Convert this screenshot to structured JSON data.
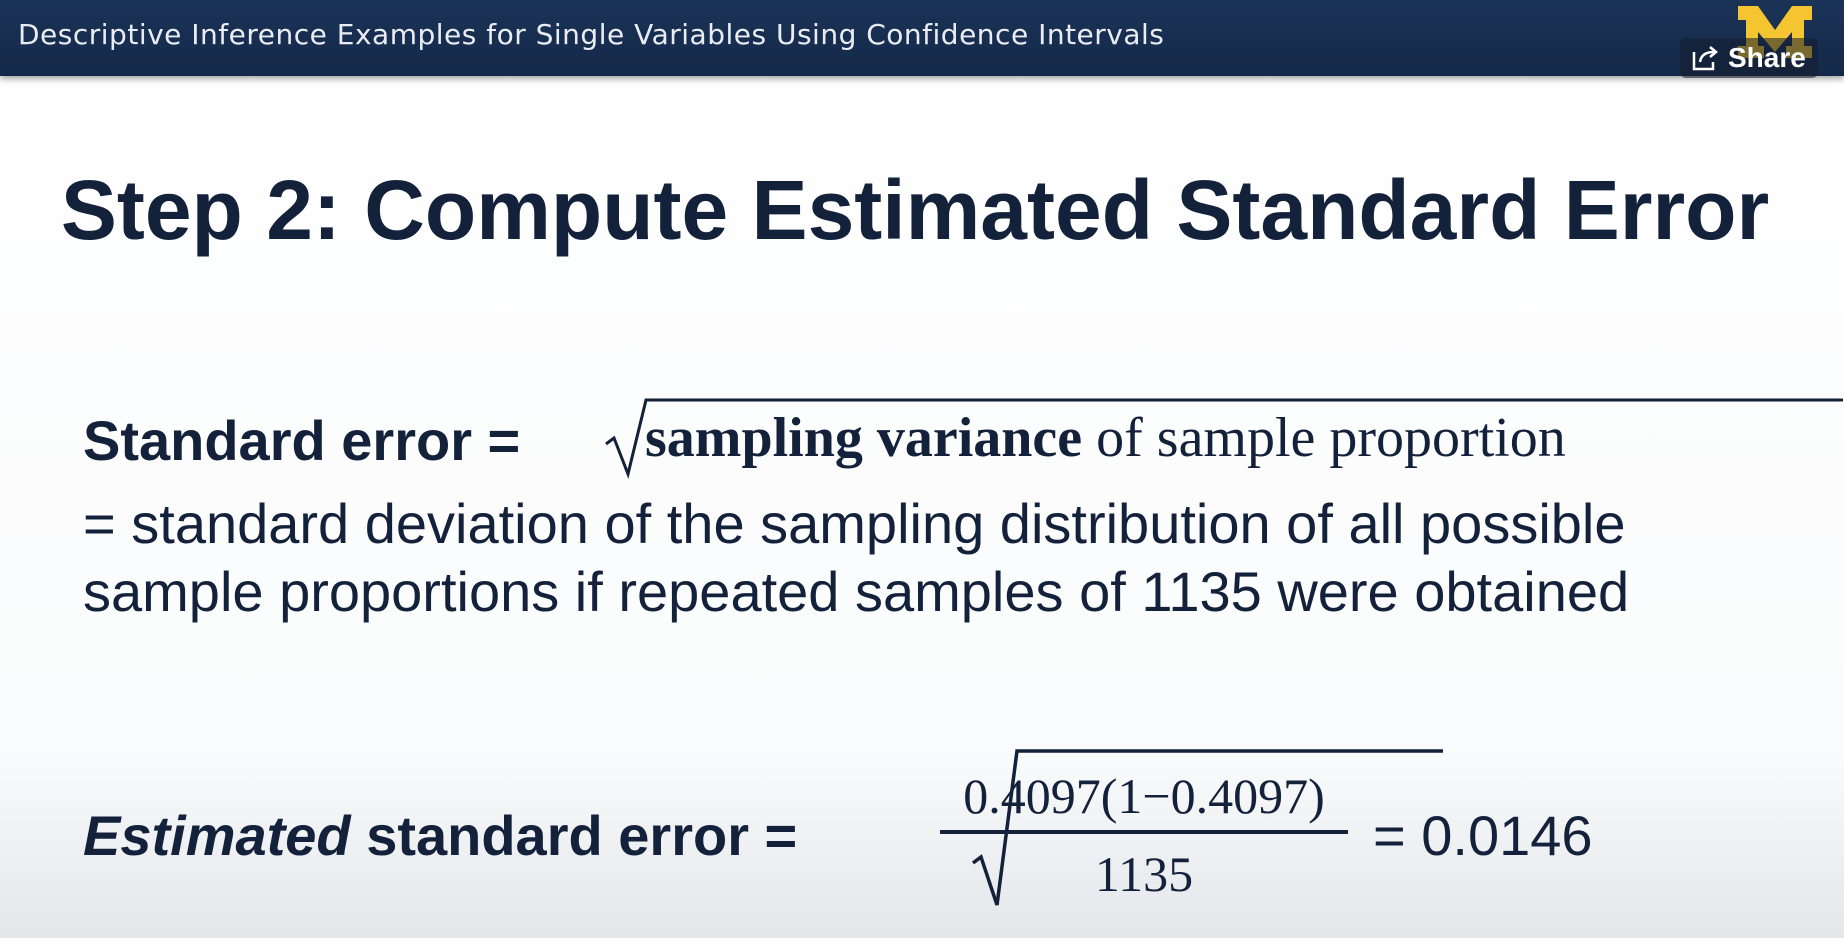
{
  "header": {
    "title": "Descriptive Inference Examples for Single Variables Using Confidence Intervals",
    "share_label": "Share",
    "share_icon": "share-icon",
    "logo_letter": "M",
    "logo_color": "#f4c531"
  },
  "slide": {
    "title": "Step 2: Compute Estimated Standard Error",
    "se_label": "Standard error =",
    "se_radicand_bold": "sampling variance",
    "se_radicand_rest": "of sample proportion",
    "definition": "= standard deviation of the sampling distribution of all possible sample proportions if repeated samples of 1135 were obtained",
    "est_label_italic": "Estimated",
    "est_label_rest": "standard error =",
    "numerator": "0.4097(1−0.4097)",
    "denominator": "1135",
    "result": "= 0.0146"
  },
  "colors": {
    "header_bg": "#1b3357",
    "text": "#13213b"
  }
}
